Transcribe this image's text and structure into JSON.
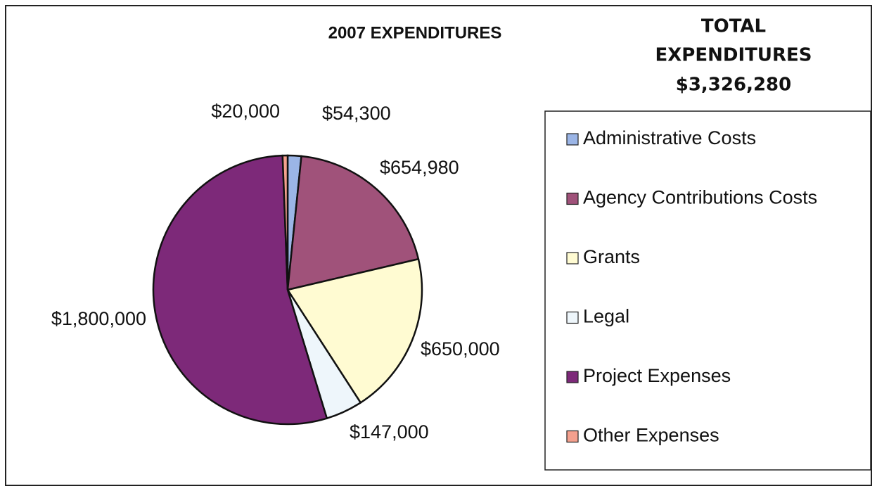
{
  "chart_data": {
    "type": "pie",
    "title": "2007 EXPENDITURES",
    "annotations": [
      "TOTAL",
      "EXPENDITURES",
      "$3,326,280"
    ],
    "categories": [
      "Administrative Costs",
      "Agency Contributions Costs",
      "Grants",
      "Legal",
      "Project Expenses",
      "Other Expenses"
    ],
    "values": [
      54300,
      654980,
      650000,
      147000,
      1800000,
      20000
    ],
    "value_labels": [
      "$54,300",
      "$654,980",
      "$650,000",
      "$147,000",
      "$1,800,000",
      "$20,000"
    ],
    "colors": [
      "#9bb5e6",
      "#a0527a",
      "#fffbd2",
      "#eef6fb",
      "#7d2979",
      "#f4a08e"
    ],
    "legend": "right"
  }
}
